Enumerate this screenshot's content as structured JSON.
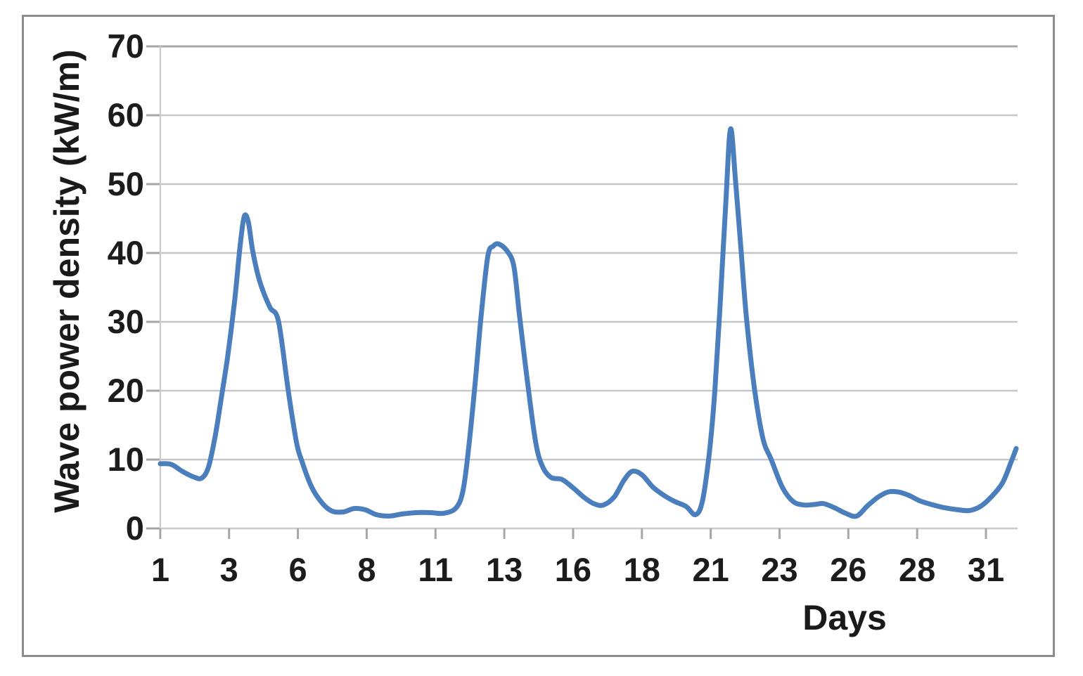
{
  "page": {
    "background": "#ffffff",
    "frame_color": "#8c8c8c"
  },
  "chart_data": {
    "type": "line",
    "title": "",
    "xlabel": "Days",
    "ylabel": "Wave power density (kW/m)",
    "x_axis": {
      "tick_labels": [
        "1",
        "3",
        "6",
        "8",
        "11",
        "13",
        "16",
        "18",
        "21",
        "23",
        "26",
        "28",
        "31"
      ],
      "tick_positions_days": [
        1,
        3.5,
        6,
        8.5,
        11,
        13.5,
        16,
        18.5,
        21,
        23.5,
        26,
        28.5,
        31
      ],
      "range_days": [
        1,
        32.15
      ]
    },
    "y_axis": {
      "tick_labels": [
        "0",
        "10",
        "20",
        "30",
        "40",
        "50",
        "60",
        "70"
      ],
      "ticks": [
        0,
        10,
        20,
        30,
        40,
        50,
        60,
        70
      ],
      "range": [
        0,
        70
      ]
    },
    "grid": {
      "horizontal": true,
      "vertical": false
    },
    "colors": {
      "line": "#4a7ebc",
      "gridline": "#c5c7c9",
      "top_gridline": "#a8a8a8",
      "axis_line": "#cccccc",
      "tick_mark": "#a6a6a6",
      "text": "#1c1c1c"
    },
    "legend": {
      "visible": false
    },
    "series": [
      {
        "name": "Wave power density (kW/m)",
        "color": "#4a7ebc",
        "points": [
          [
            1.0,
            9.4
          ],
          [
            1.4,
            9.3
          ],
          [
            1.8,
            8.3
          ],
          [
            2.2,
            7.5
          ],
          [
            2.5,
            7.3
          ],
          [
            2.75,
            8.9
          ],
          [
            3.0,
            13.5
          ],
          [
            3.2,
            18.5
          ],
          [
            3.45,
            25.0
          ],
          [
            3.7,
            33.0
          ],
          [
            3.9,
            41.0
          ],
          [
            4.05,
            45.3
          ],
          [
            4.2,
            44.5
          ],
          [
            4.35,
            40.5
          ],
          [
            4.55,
            36.8
          ],
          [
            4.75,
            34.3
          ],
          [
            5.0,
            32.0
          ],
          [
            5.3,
            30.0
          ],
          [
            5.65,
            20.0
          ],
          [
            5.95,
            12.5
          ],
          [
            6.15,
            9.7
          ],
          [
            6.5,
            6.0
          ],
          [
            6.9,
            3.6
          ],
          [
            7.25,
            2.5
          ],
          [
            7.65,
            2.4
          ],
          [
            8.05,
            2.9
          ],
          [
            8.45,
            2.7
          ],
          [
            8.85,
            2.0
          ],
          [
            9.3,
            1.8
          ],
          [
            9.8,
            2.1
          ],
          [
            10.3,
            2.3
          ],
          [
            10.8,
            2.3
          ],
          [
            11.3,
            2.2
          ],
          [
            11.75,
            3.0
          ],
          [
            12.0,
            5.5
          ],
          [
            12.2,
            11.5
          ],
          [
            12.45,
            21.5
          ],
          [
            12.65,
            30.5
          ],
          [
            12.9,
            39.5
          ],
          [
            13.1,
            41.0
          ],
          [
            13.3,
            41.3
          ],
          [
            13.6,
            40.3
          ],
          [
            13.85,
            38.0
          ],
          [
            14.05,
            31.0
          ],
          [
            14.35,
            21.0
          ],
          [
            14.65,
            12.3
          ],
          [
            14.9,
            8.9
          ],
          [
            15.2,
            7.4
          ],
          [
            15.6,
            7.1
          ],
          [
            16.0,
            5.9
          ],
          [
            16.4,
            4.5
          ],
          [
            16.75,
            3.6
          ],
          [
            17.1,
            3.4
          ],
          [
            17.5,
            4.6
          ],
          [
            17.85,
            7.0
          ],
          [
            18.15,
            8.3
          ],
          [
            18.5,
            7.8
          ],
          [
            18.9,
            6.0
          ],
          [
            19.3,
            4.8
          ],
          [
            19.7,
            3.9
          ],
          [
            20.1,
            3.2
          ],
          [
            20.45,
            2.0
          ],
          [
            20.7,
            4.0
          ],
          [
            20.95,
            11.0
          ],
          [
            21.15,
            20.0
          ],
          [
            21.35,
            33.0
          ],
          [
            21.55,
            47.5
          ],
          [
            21.72,
            58.0
          ],
          [
            21.9,
            50.5
          ],
          [
            22.1,
            40.5
          ],
          [
            22.3,
            30.5
          ],
          [
            22.6,
            20.0
          ],
          [
            22.9,
            13.0
          ],
          [
            23.2,
            10.0
          ],
          [
            23.6,
            6.0
          ],
          [
            24.0,
            3.9
          ],
          [
            24.4,
            3.4
          ],
          [
            24.8,
            3.5
          ],
          [
            25.1,
            3.6
          ],
          [
            25.5,
            3.0
          ],
          [
            25.9,
            2.2
          ],
          [
            26.3,
            1.8
          ],
          [
            26.7,
            3.3
          ],
          [
            27.1,
            4.6
          ],
          [
            27.45,
            5.3
          ],
          [
            27.8,
            5.3
          ],
          [
            28.2,
            4.8
          ],
          [
            28.6,
            4.0
          ],
          [
            29.0,
            3.5
          ],
          [
            29.5,
            3.0
          ],
          [
            30.0,
            2.7
          ],
          [
            30.4,
            2.6
          ],
          [
            30.8,
            3.2
          ],
          [
            31.2,
            4.6
          ],
          [
            31.6,
            6.6
          ],
          [
            31.9,
            9.5
          ],
          [
            32.1,
            11.6
          ]
        ]
      }
    ]
  }
}
